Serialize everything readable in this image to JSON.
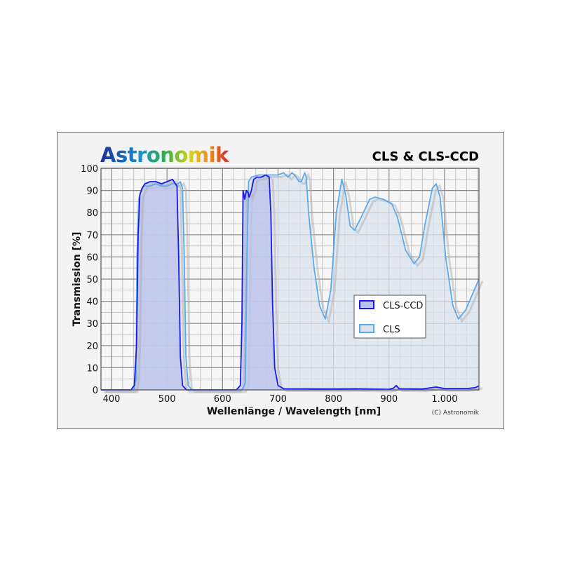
{
  "logo_text": "Astronomik",
  "copyright": "(C) Astronomik",
  "chart_data": {
    "type": "area",
    "title": "CLS & CLS-CCD",
    "xlabel": "Wellenlänge / Wavelength [nm]",
    "ylabel": "Transmission [%]",
    "xlim": [
      381,
      1062
    ],
    "ylim": [
      0,
      100
    ],
    "xticks": [
      400,
      500,
      600,
      700,
      800,
      900,
      1000
    ],
    "xtick_labels": [
      "400",
      "500",
      "600",
      "700",
      "800",
      "900",
      "1.000"
    ],
    "yticks": [
      0,
      10,
      20,
      30,
      40,
      50,
      60,
      70,
      80,
      90,
      100
    ],
    "grid": true,
    "legend_position": "right-middle",
    "series": [
      {
        "name": "CLS-CCD",
        "color": "#1a1aee",
        "fill": "#b9c1ec",
        "points": [
          [
            381,
            0
          ],
          [
            435,
            0
          ],
          [
            441,
            2
          ],
          [
            445,
            20
          ],
          [
            448,
            70
          ],
          [
            451,
            88
          ],
          [
            455,
            91
          ],
          [
            460,
            93
          ],
          [
            470,
            94
          ],
          [
            480,
            94
          ],
          [
            490,
            93
          ],
          [
            500,
            94
          ],
          [
            510,
            95
          ],
          [
            515,
            93
          ],
          [
            518,
            92
          ],
          [
            521,
            60
          ],
          [
            524,
            15
          ],
          [
            528,
            2
          ],
          [
            535,
            0
          ],
          [
            625,
            0
          ],
          [
            632,
            2
          ],
          [
            635,
            30
          ],
          [
            637,
            90
          ],
          [
            640,
            86
          ],
          [
            643,
            90
          ],
          [
            646,
            89
          ],
          [
            648,
            87
          ],
          [
            652,
            90
          ],
          [
            656,
            95
          ],
          [
            662,
            96
          ],
          [
            670,
            96
          ],
          [
            678,
            97
          ],
          [
            684,
            96
          ],
          [
            687,
            80
          ],
          [
            690,
            40
          ],
          [
            694,
            10
          ],
          [
            700,
            2
          ],
          [
            710,
            0.5
          ],
          [
            800,
            0.4
          ],
          [
            840,
            0.5
          ],
          [
            900,
            0.3
          ],
          [
            908,
            0.8
          ],
          [
            913,
            2
          ],
          [
            918,
            0.5
          ],
          [
            960,
            0.4
          ],
          [
            985,
            1.3
          ],
          [
            1000,
            0.6
          ],
          [
            1040,
            0.6
          ],
          [
            1055,
            1
          ],
          [
            1062,
            1.8
          ]
        ]
      },
      {
        "name": "CLS",
        "color": "#5aaaf0",
        "fill": "#dbe3ee",
        "points": [
          [
            381,
            0
          ],
          [
            440,
            0
          ],
          [
            444,
            5
          ],
          [
            446,
            60
          ],
          [
            449,
            86
          ],
          [
            452,
            89
          ],
          [
            458,
            92
          ],
          [
            470,
            92
          ],
          [
            480,
            93
          ],
          [
            490,
            92
          ],
          [
            500,
            92
          ],
          [
            510,
            93
          ],
          [
            520,
            93
          ],
          [
            524,
            94
          ],
          [
            528,
            91
          ],
          [
            531,
            60
          ],
          [
            534,
            15
          ],
          [
            538,
            2
          ],
          [
            545,
            0
          ],
          [
            635,
            0
          ],
          [
            641,
            3
          ],
          [
            644,
            60
          ],
          [
            647,
            94
          ],
          [
            652,
            96
          ],
          [
            665,
            97
          ],
          [
            690,
            97
          ],
          [
            700,
            97
          ],
          [
            710,
            98
          ],
          [
            718,
            96
          ],
          [
            725,
            98
          ],
          [
            730,
            97
          ],
          [
            738,
            94
          ],
          [
            742,
            94
          ],
          [
            748,
            98
          ],
          [
            751,
            96
          ],
          [
            755,
            80
          ],
          [
            765,
            55
          ],
          [
            775,
            38
          ],
          [
            785,
            32
          ],
          [
            795,
            45
          ],
          [
            805,
            80
          ],
          [
            815,
            95
          ],
          [
            822,
            88
          ],
          [
            830,
            74
          ],
          [
            838,
            72
          ],
          [
            850,
            78
          ],
          [
            865,
            86
          ],
          [
            875,
            87
          ],
          [
            890,
            86
          ],
          [
            905,
            84
          ],
          [
            915,
            78
          ],
          [
            930,
            63
          ],
          [
            945,
            57
          ],
          [
            955,
            60
          ],
          [
            965,
            75
          ],
          [
            978,
            91
          ],
          [
            985,
            93
          ],
          [
            992,
            87
          ],
          [
            1002,
            60
          ],
          [
            1015,
            38
          ],
          [
            1025,
            32
          ],
          [
            1038,
            36
          ],
          [
            1050,
            43
          ],
          [
            1062,
            50
          ]
        ]
      }
    ]
  }
}
